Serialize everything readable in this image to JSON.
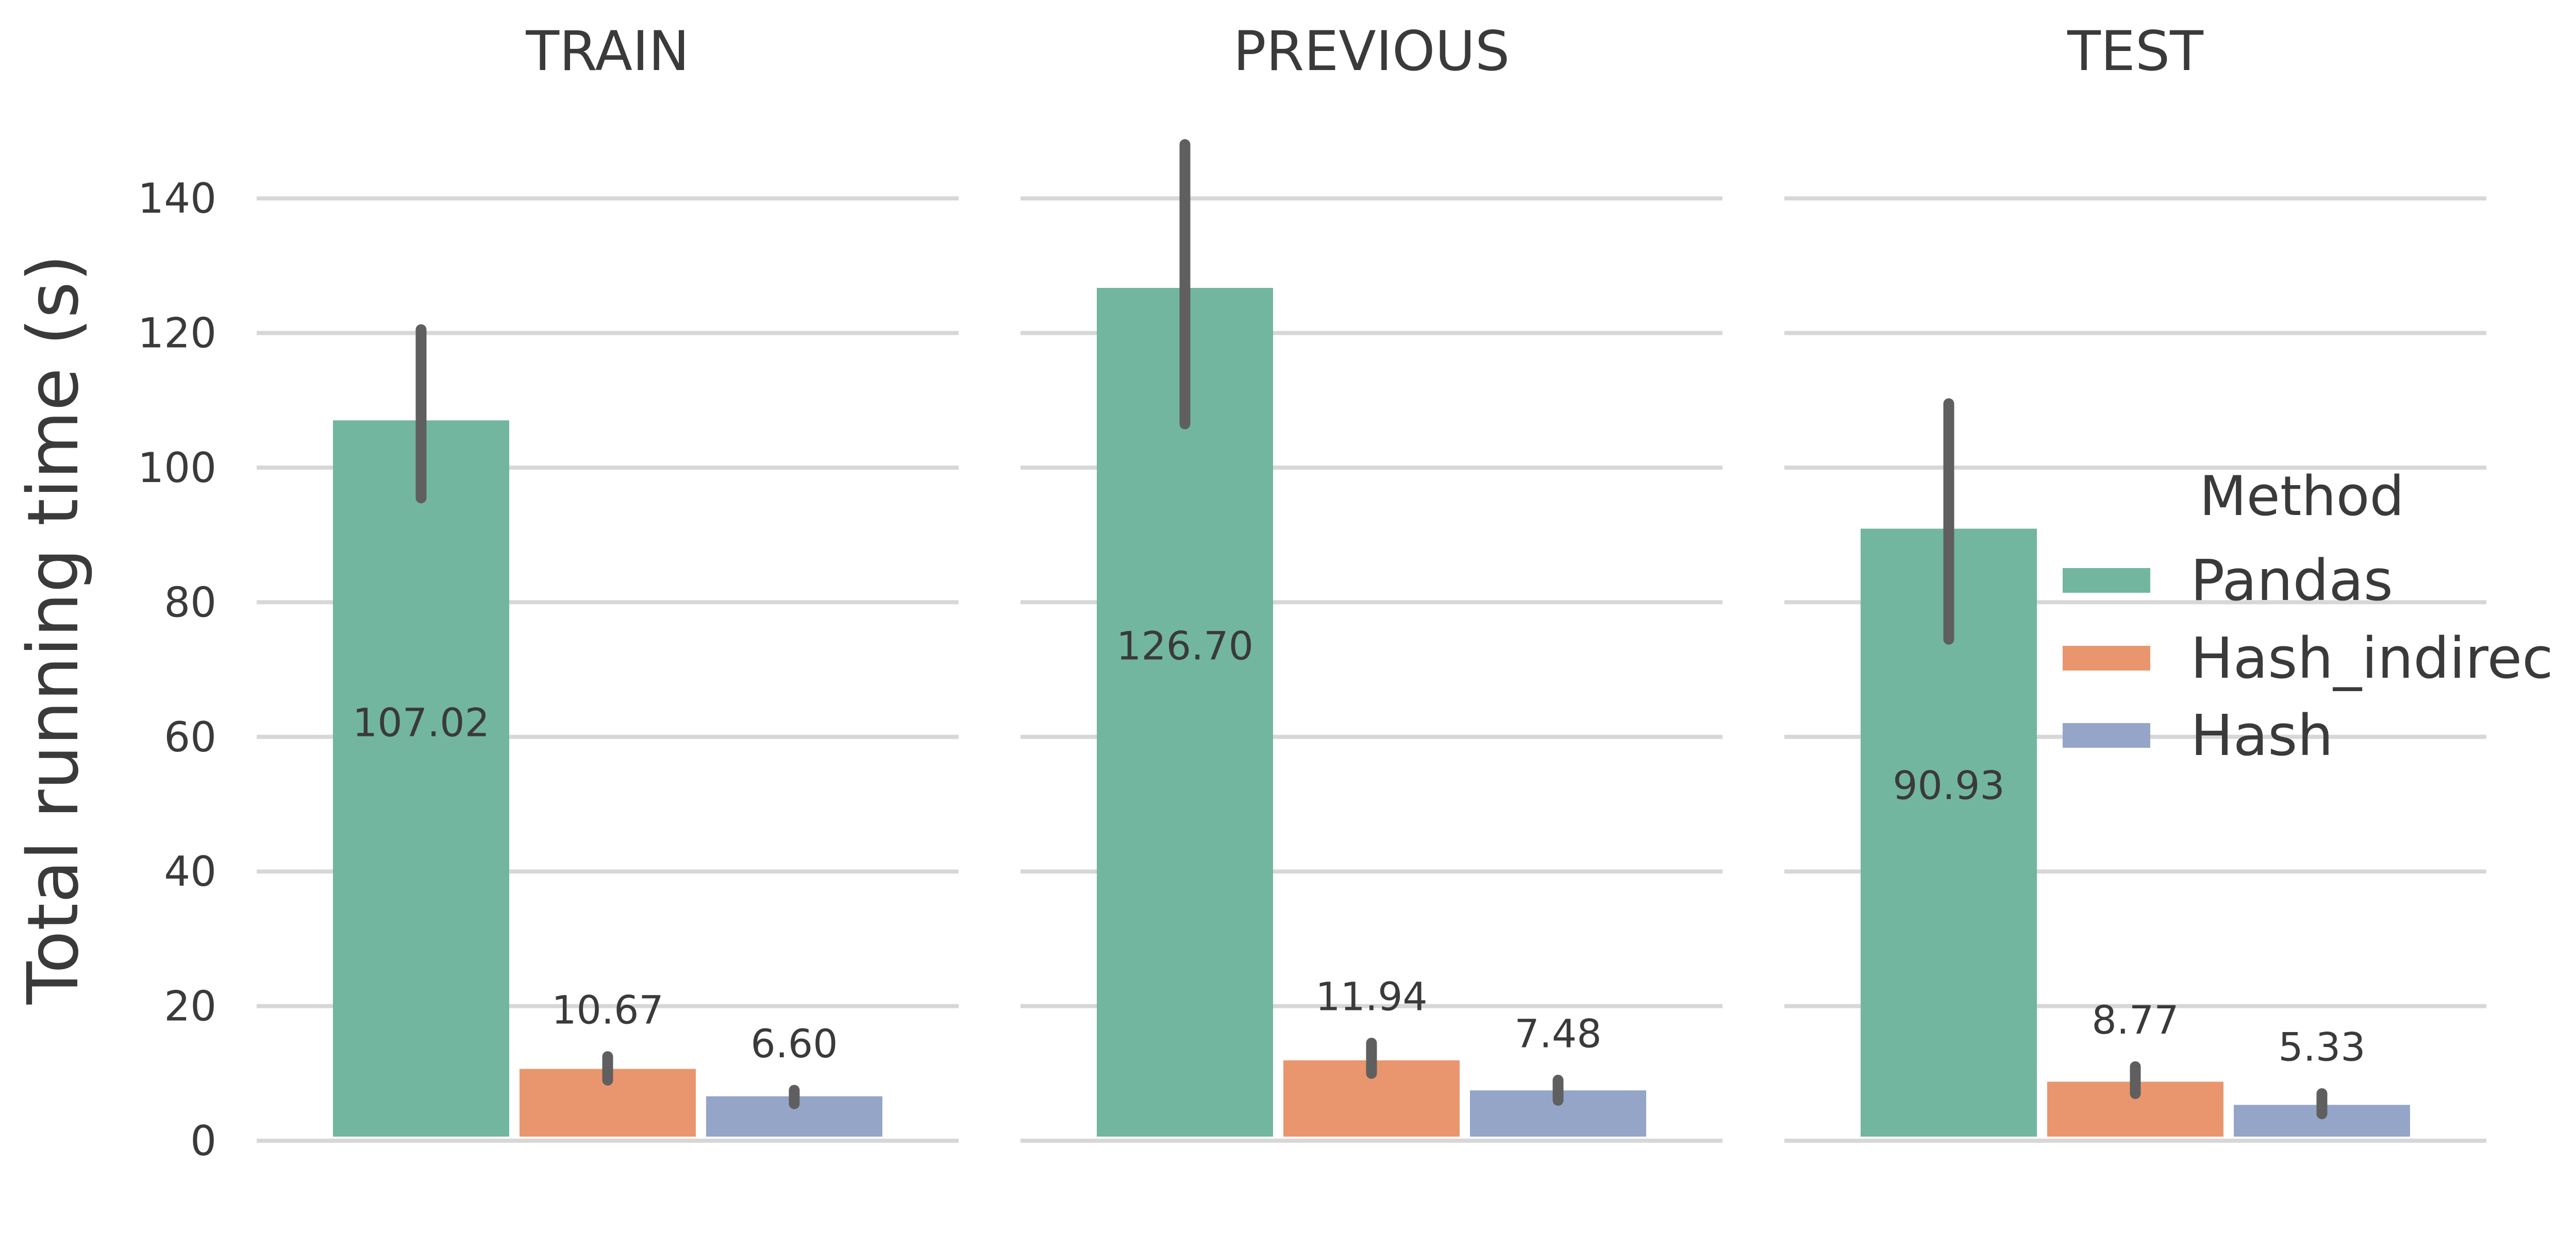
{
  "chart_data": {
    "type": "bar",
    "ylabel": "Total running time (s)",
    "ylim": [
      0,
      150
    ],
    "yticks": [
      0,
      20,
      40,
      60,
      80,
      100,
      120,
      140
    ],
    "grid": true,
    "legend": {
      "title": "Method",
      "placement": "right",
      "entries": [
        {
          "name": "Pandas",
          "color": "#72b6a0"
        },
        {
          "name": "Hash_indirec",
          "color": "#e9966e"
        },
        {
          "name": "Hash",
          "color": "#95a5c8"
        }
      ]
    },
    "panels": [
      {
        "title": "TRAIN",
        "categories": [
          "Pandas",
          "Hash_indirec",
          "Hash"
        ],
        "values": [
          107.02,
          10.67,
          6.6
        ],
        "labels": [
          "107.02",
          "10.67",
          "6.60"
        ],
        "error": [
          [
            95.5,
            120.5
          ],
          [
            9.0,
            12.5
          ],
          [
            5.5,
            7.5
          ]
        ]
      },
      {
        "title": "PREVIOUS",
        "categories": [
          "Pandas",
          "Hash_indirec",
          "Hash"
        ],
        "values": [
          126.7,
          11.94,
          7.48
        ],
        "labels": [
          "126.70",
          "11.94",
          "7.48"
        ],
        "error": [
          [
            106.5,
            148.0
          ],
          [
            10.0,
            14.5
          ],
          [
            6.0,
            9.0
          ]
        ]
      },
      {
        "title": "TEST",
        "categories": [
          "Pandas",
          "Hash_indirec",
          "Hash"
        ],
        "values": [
          90.93,
          8.77,
          5.33
        ],
        "labels": [
          "90.93",
          "8.77",
          "5.33"
        ],
        "error": [
          [
            74.5,
            109.5
          ],
          [
            7.0,
            11.0
          ],
          [
            4.0,
            7.0
          ]
        ]
      }
    ]
  }
}
